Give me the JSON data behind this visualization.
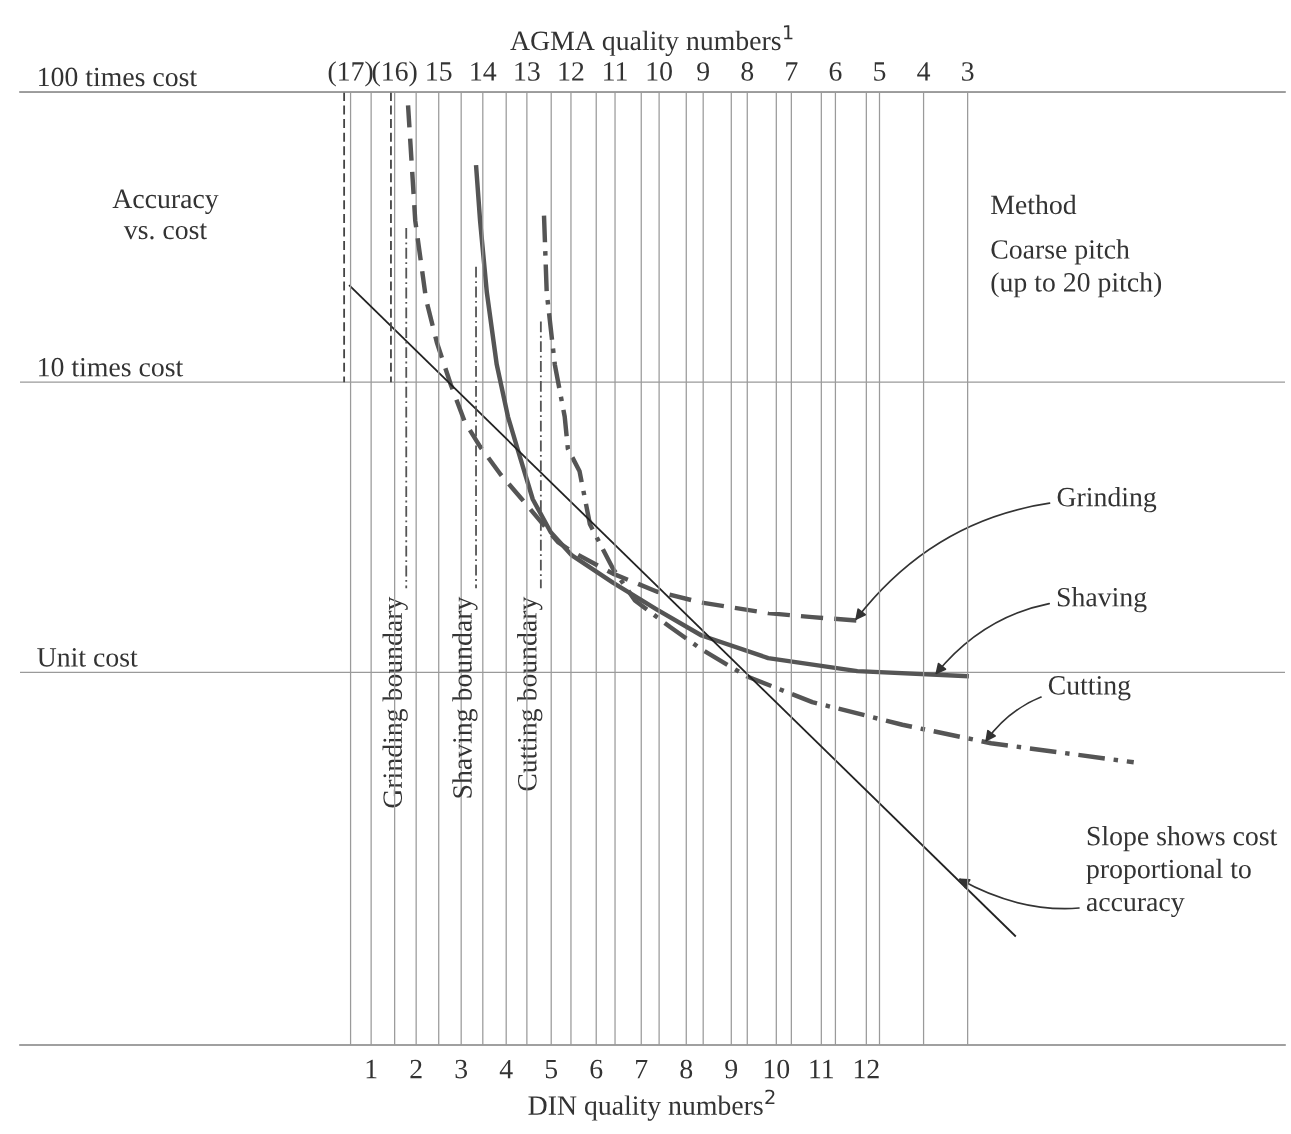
{
  "chart_data": {
    "type": "line",
    "title": "Accuracy\nvs. cost",
    "xlabel": "DIN quality numbers$^{2}$",
    "x2label": "AGMA quality numbers$^{1}$",
    "xlim": [
      -6.8,
      21.3
    ],
    "xticks": [
      1,
      2,
      3,
      4,
      5,
      6,
      7,
      8,
      9,
      10,
      11,
      12
    ],
    "x2lim": [
      24.5,
      -4.2
    ],
    "x2ticks": [
      {
        "value": 17,
        "label": "(17)"
      },
      {
        "value": 16,
        "label": "(16)"
      },
      15,
      14,
      13,
      12,
      11,
      10,
      9,
      8,
      7,
      6,
      5,
      4,
      3
    ],
    "log": "y",
    "ylim": [
      0.052,
      100
    ],
    "yticks": [
      {
        "value": 100,
        "label": "100 times cost"
      },
      {
        "value": 10,
        "label": "10 times cost"
      },
      {
        "value": 1,
        "label": "Unit cost"
      }
    ],
    "grid": true,
    "legend": false,
    "marker": "none",
    "series": [
      {
        "name": "Grinding",
        "color": "#555555",
        "line_style": "dashed",
        "x": [
          1.82,
          1.98,
          2.22,
          2.46,
          2.77,
          3.08,
          3.42,
          3.88,
          4.35,
          5.15,
          5.46,
          6.37,
          7.34,
          8.34,
          9.82,
          10.8,
          12.0
        ],
        "values": [
          90,
          36,
          19.3,
          13.7,
          9.8,
          7.3,
          6.0,
          4.8,
          3.95,
          2.81,
          2.61,
          2.19,
          1.9,
          1.74,
          1.6,
          1.55,
          1.5
        ]
      },
      {
        "name": "Shaving",
        "color": "#555555",
        "line_style": "solid",
        "x": [
          3.33,
          3.42,
          3.57,
          3.79,
          4.04,
          4.28,
          4.59,
          4.99,
          5.46,
          6.37,
          7.34,
          8.34,
          9.82,
          11.8,
          14.28
        ],
        "values": [
          56,
          36,
          20.4,
          11.5,
          7.6,
          5.7,
          3.95,
          3.04,
          2.53,
          2.04,
          1.65,
          1.34,
          1.12,
          1.01,
          0.97
        ]
      },
      {
        "name": "Cutting",
        "color": "#555555",
        "line_style": "dashdot",
        "x": [
          4.84,
          4.9,
          5.08,
          5.3,
          5.37,
          5.63,
          5.86,
          6.37,
          6.86,
          7.65,
          8.34,
          9.34,
          10.8,
          12.8,
          14.77,
          17.94
        ],
        "values": [
          37.5,
          20.4,
          11.5,
          7.6,
          5.9,
          4.93,
          3.24,
          2.28,
          1.77,
          1.43,
          1.2,
          0.97,
          0.79,
          0.66,
          0.57,
          0.49
        ]
      },
      {
        "color": "#222222",
        "line_style": "solid",
        "x": [
          0.51,
          15.32
        ],
        "values": [
          21.6,
          0.123
        ]
      },
      {
        "color": "#444444",
        "line_style": "dashed",
        "x": [
          0.4,
          0.4
        ],
        "values": [
          100,
          10
        ]
      },
      {
        "color": "#444444",
        "line_style": "dashed",
        "x": [
          1.44,
          1.44
        ],
        "values": [
          100,
          10
        ]
      },
      {
        "name": "Grinding boundary",
        "color": "#555555",
        "line_style": "dashdot",
        "x": [
          1.78,
          1.78
        ],
        "values": [
          34,
          1.95
        ]
      },
      {
        "name": "Shaving boundary",
        "color": "#555555",
        "line_style": "dashdot",
        "x": [
          3.33,
          3.33
        ],
        "values": [
          25,
          1.95
        ]
      },
      {
        "name": "Cutting boundary",
        "color": "#555555",
        "line_style": "dashdot",
        "x": [
          4.77,
          4.77
        ],
        "values": [
          16.2,
          1.95
        ]
      }
    ],
    "annotations": [
      "Method",
      "Coarse pitch\n(up to 20 pitch)",
      {
        "text": "Slope shows cost\nproportional to\naccuracy",
        "x": 14.04,
        "y": 0.195
      }
    ]
  }
}
